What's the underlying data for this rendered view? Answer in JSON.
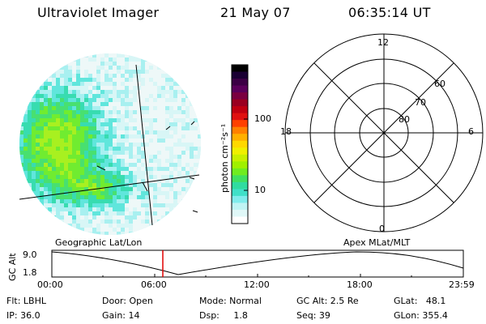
{
  "header": {
    "title": "Ultraviolet Imager",
    "date": "21 May 07",
    "time": "06:35:14 UT"
  },
  "colorbar": {
    "unit_label": "photon cm⁻²s⁻¹",
    "ticks": [
      "100",
      "10"
    ],
    "colors": [
      "#000000",
      "#1a0033",
      "#3b0044",
      "#5a005a",
      "#7a0040",
      "#9a0020",
      "#c00010",
      "#e01010",
      "#ff4000",
      "#ff8000",
      "#ffb000",
      "#ffd800",
      "#f0f000",
      "#c8f000",
      "#a0f000",
      "#70ec20",
      "#40e060",
      "#30dca0",
      "#40e0c8",
      "#80ecec",
      "#c0f4f4",
      "#e0f8f8",
      "#ffffff"
    ]
  },
  "polar": {
    "labels": [
      "12",
      "6",
      "0",
      "18"
    ],
    "lat_labels": [
      "60",
      "70",
      "80"
    ]
  },
  "orbit": {
    "left_label": "Geographic Lat/Lon",
    "right_label": "Apex MLat/MLT",
    "axis_title": "GC Alt",
    "y_ticks": [
      "9.0",
      "1.8"
    ],
    "x_ticks": [
      "00:00",
      "06:00",
      "12:00",
      "18:00",
      "23:59"
    ],
    "marker_time": "06:35"
  },
  "status": {
    "flt": "Flt: LBHL",
    "ip": "IP: 36.0",
    "door": "Door: Open",
    "gain": "Gain: 14",
    "mode": "Mode: Normal",
    "dsp": "Dsp:     1.8",
    "gcalt": "GC Alt: 2.5 Re",
    "seq": "Seq: 39",
    "glat": "GLat:   48.1",
    "glon": "GLon: 355.4"
  }
}
